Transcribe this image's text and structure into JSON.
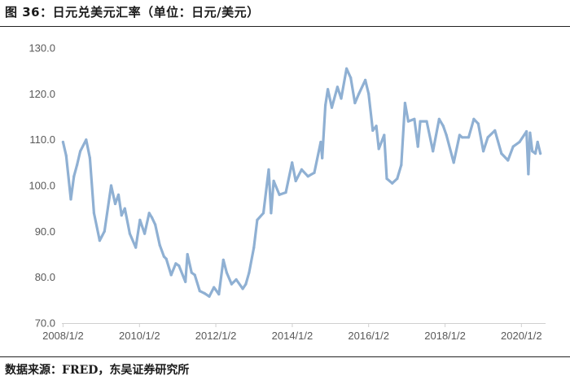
{
  "figure": {
    "title": "图 36：日元兑美元汇率（单位：日元/美元）",
    "source": "数据来源：FRED，东吴证券研究所"
  },
  "chart_data": {
    "type": "line",
    "title": "",
    "xlabel": "",
    "ylabel": "",
    "ylim": [
      70,
      130
    ],
    "yticks": [
      "70.0",
      "80.0",
      "90.0",
      "100.0",
      "110.0",
      "120.0",
      "130.0"
    ],
    "xlim": [
      "2008/1/2",
      "2020/7/1"
    ],
    "xticks": [
      "2008/1/2",
      "2010/1/2",
      "2012/1/2",
      "2014/1/2",
      "2016/1/2",
      "2018/1/2",
      "2020/1/2"
    ],
    "grid": false,
    "legend": "none",
    "line_color": "#8FB0D3",
    "series": [
      {
        "values": [
          [
            "2008/1/2",
            109.5
          ],
          [
            "2008/2/1",
            106.5
          ],
          [
            "2008/3/17",
            97.0
          ],
          [
            "2008/4/15",
            102.0
          ],
          [
            "2008/5/15",
            104.5
          ],
          [
            "2008/6/15",
            107.5
          ],
          [
            "2008/8/10",
            110.0
          ],
          [
            "2008/9/15",
            106.0
          ],
          [
            "2008/10/24",
            94.0
          ],
          [
            "2008/12/17",
            88.0
          ],
          [
            "2009/2/1",
            90.0
          ],
          [
            "2009/4/6",
            100.0
          ],
          [
            "2009/5/15",
            96.0
          ],
          [
            "2009/6/15",
            98.0
          ],
          [
            "2009/7/15",
            93.5
          ],
          [
            "2009/8/15",
            95.0
          ],
          [
            "2009/10/1",
            89.5
          ],
          [
            "2009/11/27",
            86.5
          ],
          [
            "2010/1/7",
            92.5
          ],
          [
            "2010/2/20",
            89.5
          ],
          [
            "2010/4/5",
            94.0
          ],
          [
            "2010/5/1",
            93.0
          ],
          [
            "2010/6/1",
            91.5
          ],
          [
            "2010/7/15",
            87.0
          ],
          [
            "2010/8/24",
            84.5
          ],
          [
            "2010/9/15",
            84.0
          ],
          [
            "2010/11/1",
            80.5
          ],
          [
            "2010/12/15",
            83.0
          ],
          [
            "2011/1/15",
            82.5
          ],
          [
            "2011/3/17",
            79.0
          ],
          [
            "2011/4/6",
            85.0
          ],
          [
            "2011/5/15",
            81.0
          ],
          [
            "2011/6/15",
            80.5
          ],
          [
            "2011/8/1",
            77.0
          ],
          [
            "2011/9/15",
            76.5
          ],
          [
            "2011/10/31",
            75.8
          ],
          [
            "2011/12/15",
            77.8
          ],
          [
            "2012/1/31",
            76.3
          ],
          [
            "2012/3/14",
            83.8
          ],
          [
            "2012/4/15",
            81.0
          ],
          [
            "2012/6/1",
            78.5
          ],
          [
            "2012/7/15",
            79.5
          ],
          [
            "2012/9/15",
            77.5
          ],
          [
            "2012/10/15",
            78.5
          ],
          [
            "2012/11/15",
            81.0
          ],
          [
            "2012/12/31",
            86.5
          ],
          [
            "2013/2/1",
            92.5
          ],
          [
            "2013/4/1",
            94.0
          ],
          [
            "2013/5/22",
            103.5
          ],
          [
            "2013/6/13",
            94.0
          ],
          [
            "2013/7/8",
            101.0
          ],
          [
            "2013/9/1",
            98.0
          ],
          [
            "2013/11/1",
            98.5
          ],
          [
            "2013/12/31",
            105.0
          ],
          [
            "2014/2/4",
            101.0
          ],
          [
            "2014/4/1",
            103.5
          ],
          [
            "2014/6/1",
            102.0
          ],
          [
            "2014/8/1",
            102.8
          ],
          [
            "2014/10/1",
            109.5
          ],
          [
            "2014/10/15",
            106.0
          ],
          [
            "2014/11/15",
            117.5
          ],
          [
            "2014/12/8",
            121.0
          ],
          [
            "2015/1/15",
            117.0
          ],
          [
            "2015/3/10",
            121.5
          ],
          [
            "2015/4/15",
            119.0
          ],
          [
            "2015/6/5",
            125.5
          ],
          [
            "2015/7/15",
            123.5
          ],
          [
            "2015/8/24",
            118.0
          ],
          [
            "2015/10/1",
            120.0
          ],
          [
            "2015/12/1",
            123.0
          ],
          [
            "2016/1/2",
            120.0
          ],
          [
            "2016/2/11",
            112.0
          ],
          [
            "2016/3/15",
            113.0
          ],
          [
            "2016/4/8",
            108.0
          ],
          [
            "2016/5/30",
            111.0
          ],
          [
            "2016/6/24",
            101.5
          ],
          [
            "2016/8/15",
            100.5
          ],
          [
            "2016/10/1",
            101.5
          ],
          [
            "2016/11/9",
            104.5
          ],
          [
            "2016/12/15",
            118.0
          ],
          [
            "2017/1/15",
            114.0
          ],
          [
            "2017/3/15",
            114.5
          ],
          [
            "2017/4/17",
            108.5
          ],
          [
            "2017/5/10",
            114.0
          ],
          [
            "2017/7/10",
            114.0
          ],
          [
            "2017/9/8",
            107.5
          ],
          [
            "2017/11/6",
            114.5
          ],
          [
            "2017/12/15",
            113.0
          ],
          [
            "2018/1/15",
            111.0
          ],
          [
            "2018/3/26",
            105.0
          ],
          [
            "2018/5/21",
            111.0
          ],
          [
            "2018/6/15",
            110.5
          ],
          [
            "2018/8/15",
            110.5
          ],
          [
            "2018/10/4",
            114.5
          ],
          [
            "2018/11/15",
            113.5
          ],
          [
            "2019/1/3",
            107.5
          ],
          [
            "2019/2/15",
            110.5
          ],
          [
            "2019/4/24",
            112.0
          ],
          [
            "2019/6/25",
            107.0
          ],
          [
            "2019/8/26",
            105.5
          ],
          [
            "2019/10/15",
            108.5
          ],
          [
            "2019/12/15",
            109.5
          ],
          [
            "2020/2/20",
            111.8
          ],
          [
            "2020/3/9",
            102.5
          ],
          [
            "2020/3/24",
            111.5
          ],
          [
            "2020/4/15",
            107.5
          ],
          [
            "2020/5/15",
            107.0
          ],
          [
            "2020/6/5",
            109.5
          ],
          [
            "2020/7/1",
            107.0
          ]
        ]
      }
    ]
  }
}
